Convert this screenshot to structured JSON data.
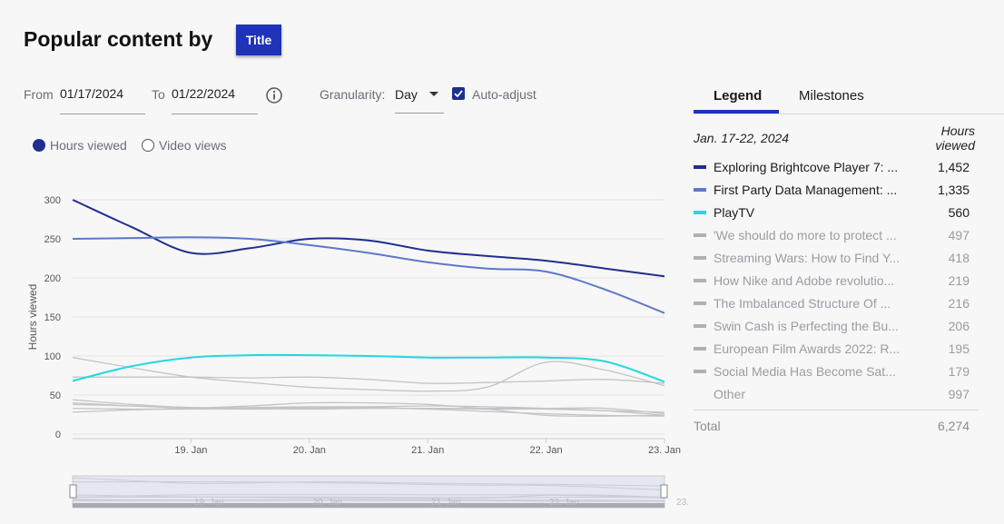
{
  "header": {
    "title": "Popular content by",
    "group_button": "Title"
  },
  "filters": {
    "from_label": "From",
    "from_value": "01/17/2024",
    "to_label": "To",
    "to_value": "01/22/2024",
    "granularity_label": "Granularity:",
    "granularity_value": "Day",
    "auto_adjust_label": "Auto-adjust",
    "auto_adjust_checked": true
  },
  "metric_toggle": {
    "options": [
      {
        "label": "Hours viewed",
        "selected": true
      },
      {
        "label": "Video views",
        "selected": false
      }
    ]
  },
  "chart_data": {
    "type": "line",
    "ylabel": "Hours viewed",
    "ylim": [
      0,
      300
    ],
    "yticks": [
      "0",
      "50",
      "100",
      "150",
      "200",
      "250",
      "300"
    ],
    "xticks": [
      "19. Jan",
      "20. Jan",
      "21. Jan",
      "22. Jan",
      "23. Jan"
    ],
    "x": [
      18.0,
      18.5,
      19.0,
      19.5,
      20.0,
      20.5,
      21.0,
      21.5,
      22.0,
      22.5,
      23.0
    ],
    "series": [
      {
        "name": "Exploring Brightcove Player 7: ...",
        "color": "#1e2f8f",
        "values": [
          300,
          265,
          232,
          238,
          250,
          248,
          235,
          228,
          222,
          212,
          202
        ]
      },
      {
        "name": "First Party Data Management: ...",
        "color": "#5f78c7",
        "values": [
          250,
          251,
          252,
          250,
          242,
          232,
          220,
          212,
          208,
          185,
          155
        ]
      },
      {
        "name": "PlayTV",
        "color": "#22d8e0",
        "values": [
          68,
          87,
          98,
          101,
          101,
          100,
          98,
          98,
          98,
          93,
          67
        ]
      },
      {
        "name": "'We should do more to protect ...",
        "color": "#c4c4c8",
        "values": [
          98,
          85,
          73,
          66,
          60,
          57,
          55,
          60,
          92,
          82,
          62
        ]
      },
      {
        "name": "Streaming Wars: How to Find Y...",
        "color": "#c4c4c8",
        "values": [
          73,
          73,
          73,
          72,
          73,
          70,
          65,
          66,
          68,
          70,
          65
        ]
      },
      {
        "name": "How Nike and Adobe revolutio...",
        "color": "#c4c4c8",
        "values": [
          38,
          36,
          34,
          33,
          32,
          33,
          33,
          32,
          32,
          30,
          28
        ]
      },
      {
        "name": "The Imbalanced Structure Of ...",
        "color": "#c4c4c8",
        "values": [
          44,
          38,
          34,
          34,
          35,
          35,
          36,
          35,
          33,
          30,
          24
        ]
      },
      {
        "name": "Swin Cash is Perfecting the Bu...",
        "color": "#c4c4c8",
        "values": [
          40,
          36,
          33,
          32,
          33,
          33,
          33,
          33,
          33,
          33,
          26
        ]
      },
      {
        "name": "European Film Awards 2022: R...",
        "color": "#c4c4c8",
        "values": [
          33,
          32,
          32,
          33,
          34,
          34,
          32,
          29,
          26,
          24,
          23
        ]
      },
      {
        "name": "Social Media Has Become Sat...",
        "color": "#c4c4c8",
        "values": [
          28,
          31,
          33,
          36,
          40,
          40,
          38,
          32,
          24,
          23,
          24
        ]
      }
    ]
  },
  "navigator": {
    "xticks": [
      "19. Jan",
      "20. Jan",
      "21. Jan",
      "22. Jan",
      "23."
    ]
  },
  "side_panel": {
    "tabs": [
      {
        "label": "Legend",
        "active": true
      },
      {
        "label": "Milestones",
        "active": false
      }
    ],
    "range_label": "Jan. 17-22, 2024",
    "column_header_line1": "Hours",
    "column_header_line2": "viewed",
    "items": [
      {
        "name": "Exploring Brightcove Player 7: ...",
        "value": "1,452",
        "color": "#1e2f8f",
        "active": true
      },
      {
        "name": "First Party Data Management: ...",
        "value": "1,335",
        "color": "#5f78c7",
        "active": true
      },
      {
        "name": "PlayTV",
        "value": "560",
        "color": "#22d8e0",
        "active": true
      },
      {
        "name": "'We should do more to protect ...",
        "value": "497",
        "color": "#b0b0b4",
        "active": false
      },
      {
        "name": "Streaming Wars: How to Find Y...",
        "value": "418",
        "color": "#b0b0b4",
        "active": false
      },
      {
        "name": "How Nike and Adobe revolutio...",
        "value": "219",
        "color": "#b0b0b4",
        "active": false
      },
      {
        "name": "The Imbalanced Structure Of ...",
        "value": "216",
        "color": "#b0b0b4",
        "active": false
      },
      {
        "name": "Swin Cash is Perfecting the Bu...",
        "value": "206",
        "color": "#b0b0b4",
        "active": false
      },
      {
        "name": "European Film Awards 2022: R...",
        "value": "195",
        "color": "#b0b0b4",
        "active": false
      },
      {
        "name": "Social Media Has Become Sat...",
        "value": "179",
        "color": "#b0b0b4",
        "active": false
      },
      {
        "name": "Other",
        "value": "997",
        "color": "",
        "active": false
      }
    ],
    "total_label": "Total",
    "total_value": "6,274"
  }
}
